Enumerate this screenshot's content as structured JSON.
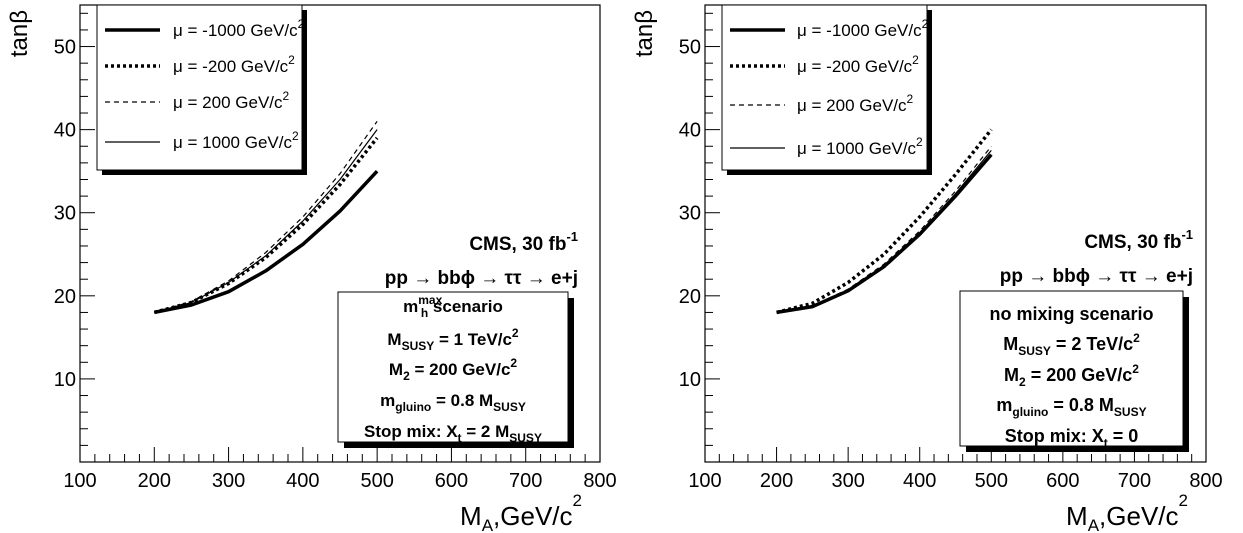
{
  "chart_data": [
    {
      "type": "line",
      "panel": "left",
      "x_axis": {
        "label_main": "M",
        "label_sub": "A",
        "label_units": ",GeV/c",
        "label_sup": "2",
        "lim": [
          100,
          800
        ],
        "ticks": [
          100,
          200,
          300,
          400,
          500,
          600,
          700,
          800
        ]
      },
      "y_axis": {
        "label": "tanβ",
        "lim": [
          0,
          55
        ],
        "ticks": [
          10,
          20,
          30,
          40,
          50
        ]
      },
      "legend": {
        "position": "top-left",
        "prefix": "μ = ",
        "unit": " GeV/c",
        "unit_sup": "2",
        "entries": [
          {
            "value_text": "-1000",
            "style": "thick"
          },
          {
            "value_text": "-200",
            "style": "dotted"
          },
          {
            "value_text": "200",
            "style": "dashed"
          },
          {
            "value_text": "1000",
            "style": "thin"
          }
        ]
      },
      "annotation": {
        "cms_text": "CMS, 30 fb",
        "cms_sup": "-1",
        "process": "pp → bbϕ → ττ → e+j"
      },
      "scenario_box": [
        {
          "parts": [
            {
              "t": "m"
            },
            {
              "t": "max",
              "k": "sup"
            },
            {
              "t": "h",
              "k": "sub"
            },
            {
              "t": " scenario"
            }
          ]
        },
        {
          "parts": [
            {
              "t": "M"
            },
            {
              "t": "SUSY",
              "k": "sub"
            },
            {
              "t": " = 1 TeV/c"
            },
            {
              "t": "2",
              "k": "sup"
            }
          ]
        },
        {
          "parts": [
            {
              "t": "M"
            },
            {
              "t": "2",
              "k": "sub"
            },
            {
              "t": " = 200 GeV/c"
            },
            {
              "t": "2",
              "k": "sup"
            }
          ]
        },
        {
          "parts": [
            {
              "t": "m"
            },
            {
              "t": "gluino",
              "k": "sub"
            },
            {
              "t": " = 0.8 M"
            },
            {
              "t": "SUSY",
              "k": "sub"
            }
          ]
        },
        {
          "parts": [
            {
              "t": "Stop mix: X"
            },
            {
              "t": "t",
              "k": "sub"
            },
            {
              "t": " = 2 M"
            },
            {
              "t": "SUSY",
              "k": "sub"
            }
          ]
        }
      ],
      "series": [
        {
          "mu": -1000,
          "x": [
            200,
            250,
            300,
            350,
            400,
            450,
            500
          ],
          "y": [
            18.0,
            18.9,
            20.5,
            23.0,
            26.2,
            30.2,
            35.0
          ]
        },
        {
          "mu": -200,
          "x": [
            200,
            250,
            300,
            350,
            400,
            450,
            500
          ],
          "y": [
            18.0,
            19.2,
            21.5,
            24.6,
            28.6,
            33.4,
            39.0
          ]
        },
        {
          "mu": 200,
          "x": [
            200,
            250,
            300,
            350,
            400,
            450,
            500
          ],
          "y": [
            18.0,
            19.3,
            21.8,
            25.2,
            29.5,
            34.7,
            41.0
          ]
        },
        {
          "mu": 1000,
          "x": [
            200,
            250,
            300,
            350,
            400,
            450,
            500
          ],
          "y": [
            18.0,
            19.2,
            21.6,
            24.8,
            29.0,
            34.0,
            40.0
          ]
        }
      ]
    },
    {
      "type": "line",
      "panel": "right",
      "x_axis": {
        "label_main": "M",
        "label_sub": "A",
        "label_units": ",GeV/c",
        "label_sup": "2",
        "lim": [
          100,
          800
        ],
        "ticks": [
          100,
          200,
          300,
          400,
          500,
          600,
          700,
          800
        ]
      },
      "y_axis": {
        "label": "tanβ",
        "lim": [
          0,
          55
        ],
        "ticks": [
          10,
          20,
          30,
          40,
          50
        ]
      },
      "legend": {
        "position": "top-left",
        "prefix": "μ = ",
        "unit": " GeV/c",
        "unit_sup": "2",
        "entries": [
          {
            "value_text": "-1000",
            "style": "thick"
          },
          {
            "value_text": "-200",
            "style": "dotted"
          },
          {
            "value_text": "200",
            "style": "dashed"
          },
          {
            "value_text": "1000",
            "style": "thin"
          }
        ]
      },
      "annotation": {
        "cms_text": "CMS, 30 fb",
        "cms_sup": "-1",
        "process": "pp → bbϕ → ττ → e+j"
      },
      "scenario_box": [
        {
          "parts": [
            {
              "t": "no mixing scenario"
            }
          ]
        },
        {
          "parts": [
            {
              "t": "M"
            },
            {
              "t": "SUSY",
              "k": "sub"
            },
            {
              "t": " = 2 TeV/c"
            },
            {
              "t": "2",
              "k": "sup"
            }
          ]
        },
        {
          "parts": [
            {
              "t": "M"
            },
            {
              "t": "2",
              "k": "sub"
            },
            {
              "t": " = 200 GeV/c"
            },
            {
              "t": "2",
              "k": "sup"
            }
          ]
        },
        {
          "parts": [
            {
              "t": "m"
            },
            {
              "t": "gluino",
              "k": "sub"
            },
            {
              "t": " = 0.8 M"
            },
            {
              "t": "SUSY",
              "k": "sub"
            }
          ]
        },
        {
          "parts": [
            {
              "t": "Stop mix: X"
            },
            {
              "t": "t",
              "k": "sub"
            },
            {
              "t": " = 0"
            }
          ]
        }
      ],
      "series": [
        {
          "mu": -1000,
          "x": [
            200,
            250,
            300,
            350,
            400,
            450,
            500
          ],
          "y": [
            18.0,
            18.7,
            20.6,
            23.5,
            27.4,
            32.0,
            37.0
          ]
        },
        {
          "mu": -200,
          "x": [
            200,
            250,
            300,
            350,
            400,
            450,
            500
          ],
          "y": [
            18.0,
            19.1,
            21.6,
            25.0,
            29.5,
            34.6,
            40.0
          ]
        },
        {
          "mu": 200,
          "x": [
            200,
            250,
            300,
            350,
            400,
            450,
            500
          ],
          "y": [
            18.0,
            18.8,
            20.8,
            23.8,
            27.8,
            32.6,
            38.0
          ]
        },
        {
          "mu": 1000,
          "x": [
            200,
            250,
            300,
            350,
            400,
            450,
            500
          ],
          "y": [
            18.0,
            18.8,
            20.7,
            23.6,
            27.6,
            32.3,
            37.5
          ]
        }
      ]
    }
  ]
}
